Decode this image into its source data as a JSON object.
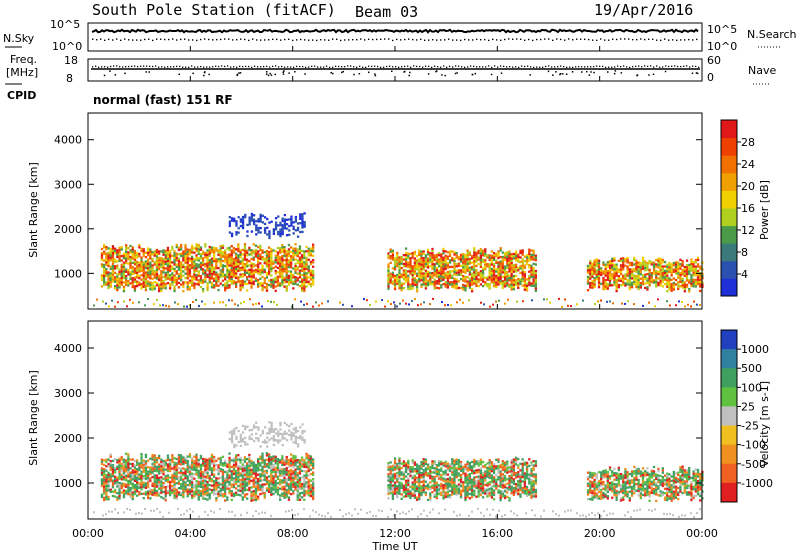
{
  "header": {
    "station": "South Pole Station (fitACF)",
    "beam": "Beam 03",
    "date": "19/Apr/2016"
  },
  "params": {
    "nsky_label": "N.Sky",
    "nsky_ticks": [
      "10^5",
      "10^0"
    ],
    "nsearch_label": "N.Search",
    "nsearch_ticks": [
      "10^5",
      "10^0"
    ],
    "freq_label_1": "Freq.",
    "freq_label_2": "[MHz]",
    "freq_ticks": [
      "18",
      "8"
    ],
    "nave_label": "Nave",
    "nave_ticks": [
      "60",
      "0"
    ],
    "cpid_label": "CPID",
    "cpid_value": "normal (fast) 151 RF"
  },
  "chart_data": [
    {
      "type": "heatmap",
      "title": "",
      "ylabel": "Slant Range [km]",
      "xlabel": "",
      "yticks": [
        "1000",
        "2000",
        "3000",
        "4000"
      ],
      "ylim": [
        200,
        4600
      ],
      "xlim": [
        0,
        24
      ],
      "colorbar": {
        "label": "Power [dB]",
        "ticks": [
          "4",
          "8",
          "12",
          "16",
          "20",
          "24",
          "28"
        ],
        "range": [
          0,
          32
        ],
        "colors": [
          "#2030d8",
          "#2a50b0",
          "#3a7a7a",
          "#4a9a4a",
          "#b0d020",
          "#f0d000",
          "#f0a000",
          "#f07000",
          "#f04000",
          "#e01818"
        ]
      },
      "echo_regions": [
        {
          "t0": 0.5,
          "t1": 8.8,
          "r0": 700,
          "r1": 1600,
          "level": "strong"
        },
        {
          "t0": 5.5,
          "t1": 8.5,
          "r0": 1900,
          "r1": 2300,
          "level": "weak"
        },
        {
          "t0": 11.7,
          "t1": 17.5,
          "r0": 700,
          "r1": 1500,
          "level": "strong"
        },
        {
          "t0": 19.5,
          "t1": 24,
          "r0": 700,
          "r1": 1300,
          "level": "strong"
        }
      ]
    },
    {
      "type": "heatmap",
      "title": "",
      "ylabel": "Slant Range [km]",
      "xlabel": "Time UT",
      "yticks": [
        "1000",
        "2000",
        "3000",
        "4000"
      ],
      "ylim": [
        200,
        4600
      ],
      "xlim": [
        0,
        24
      ],
      "xticks": [
        "00:00",
        "04:00",
        "08:00",
        "12:00",
        "16:00",
        "20:00",
        "00:00"
      ],
      "colorbar": {
        "label": "Velocity [m s-1]",
        "ticks": [
          "1000",
          "500",
          "100",
          "25",
          "-25",
          "-100",
          "-500",
          "-1000"
        ],
        "range": [
          -1200,
          1200
        ],
        "colors": [
          "#2040c0",
          "#3080a0",
          "#40a060",
          "#60c040",
          "#c0c0c0",
          "#f0c020",
          "#f09020",
          "#f06020",
          "#e02020"
        ]
      },
      "echo_regions": [
        {
          "t0": 0.5,
          "t1": 8.8,
          "r0": 700,
          "r1": 1600,
          "level": "mixed"
        },
        {
          "t0": 5.5,
          "t1": 8.5,
          "r0": 1900,
          "r1": 2300,
          "level": "ground"
        },
        {
          "t0": 11.7,
          "t1": 17.5,
          "r0": 700,
          "r1": 1500,
          "level": "mixed"
        },
        {
          "t0": 19.5,
          "t1": 24,
          "r0": 700,
          "r1": 1300,
          "level": "mixed"
        }
      ]
    }
  ]
}
